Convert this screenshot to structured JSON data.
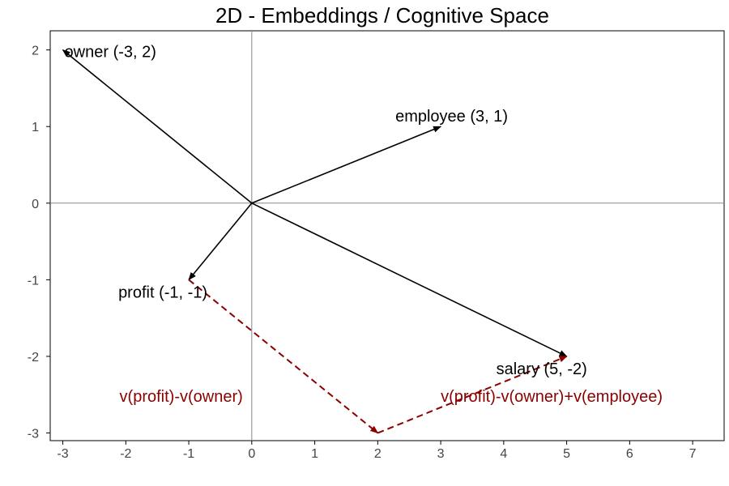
{
  "chart_data": {
    "type": "vector",
    "title": "2D - Embeddings / Cognitive Space",
    "xlim": [
      -3.2,
      7.5
    ],
    "ylim": [
      -3.1,
      2.25
    ],
    "xticks": [
      -3,
      -2,
      -1,
      0,
      1,
      2,
      3,
      4,
      5,
      6,
      7
    ],
    "yticks": [
      -3,
      -2,
      -1,
      0,
      1,
      2
    ],
    "xtick_labels": [
      "-3",
      "-2",
      "-1",
      "0",
      "1",
      "2",
      "3",
      "4",
      "5",
      "6",
      "7"
    ],
    "ytick_labels": [
      "-3",
      "-2",
      "-1",
      "0",
      "1",
      "2"
    ],
    "axis_lines": true,
    "grid": false,
    "vectors": [
      {
        "name": "owner",
        "x": -3,
        "y": 2,
        "label": "owner (-3, 2)"
      },
      {
        "name": "employee",
        "x": 3,
        "y": 1,
        "label": "employee (3, 1)"
      },
      {
        "name": "profit",
        "x": -1,
        "y": -1,
        "label": "profit (-1, -1)"
      },
      {
        "name": "salary",
        "x": 5,
        "y": -2,
        "label": "salary (5, -2)"
      }
    ],
    "dashed_vectors": [
      {
        "from": [
          -1,
          -1
        ],
        "to": [
          2,
          -3
        ],
        "label": "v(profit)-v(owner)"
      },
      {
        "from": [
          2,
          -3
        ],
        "to": [
          5,
          -2
        ],
        "label": "v(profit)-v(owner)+v(employee)"
      }
    ],
    "colors": {
      "vector": "#000000",
      "dashed": "#8b0000",
      "axis": "#888888",
      "frame": "#000000"
    }
  }
}
